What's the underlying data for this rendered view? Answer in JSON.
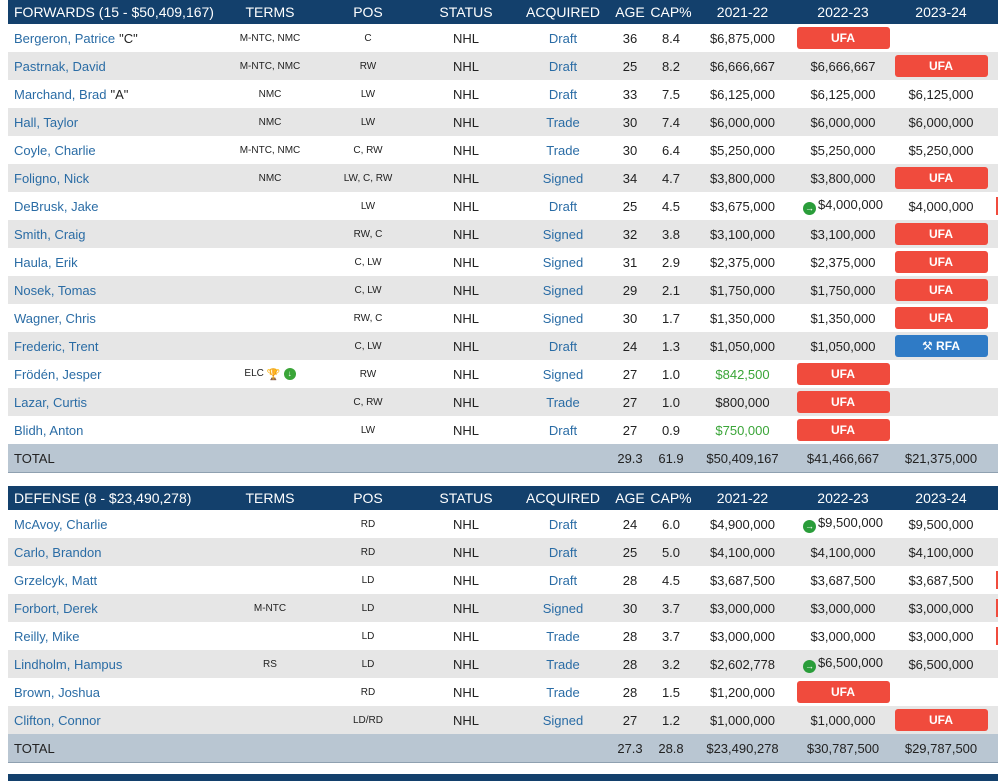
{
  "forwards": {
    "title": "FORWARDS (15 - $50,409,167)",
    "headers": [
      "TERMS",
      "POS",
      "STATUS",
      "ACQUIRED",
      "AGE",
      "CAP%",
      "2021-22",
      "2022-23",
      "2023-24"
    ],
    "rows": [
      {
        "name": "Bergeron, Patrice",
        "tag": "\"C\"",
        "terms": "M-NTC, NMC",
        "pos": "C",
        "status": "NHL",
        "acquired": "Draft",
        "age": "36",
        "cap": "8.4",
        "y1": "$6,875,000",
        "y2": "UFA",
        "y3": ""
      },
      {
        "name": "Pastrnak, David",
        "tag": "",
        "terms": "M-NTC, NMC",
        "pos": "RW",
        "status": "NHL",
        "acquired": "Draft",
        "age": "25",
        "cap": "8.2",
        "y1": "$6,666,667",
        "y2": "$6,666,667",
        "y3": "UFA"
      },
      {
        "name": "Marchand, Brad",
        "tag": "\"A\"",
        "terms": "NMC",
        "pos": "LW",
        "status": "NHL",
        "acquired": "Draft",
        "age": "33",
        "cap": "7.5",
        "y1": "$6,125,000",
        "y2": "$6,125,000",
        "y3": "$6,125,000"
      },
      {
        "name": "Hall, Taylor",
        "tag": "",
        "terms": "NMC",
        "pos": "LW",
        "status": "NHL",
        "acquired": "Trade",
        "age": "30",
        "cap": "7.4",
        "y1": "$6,000,000",
        "y2": "$6,000,000",
        "y3": "$6,000,000"
      },
      {
        "name": "Coyle, Charlie",
        "tag": "",
        "terms": "M-NTC, NMC",
        "pos": "C, RW",
        "status": "NHL",
        "acquired": "Trade",
        "age": "30",
        "cap": "6.4",
        "y1": "$5,250,000",
        "y2": "$5,250,000",
        "y3": "$5,250,000"
      },
      {
        "name": "Foligno, Nick",
        "tag": "",
        "terms": "NMC",
        "pos": "LW, C, RW",
        "status": "NHL",
        "acquired": "Signed",
        "age": "34",
        "cap": "4.7",
        "y1": "$3,800,000",
        "y2": "$3,800,000",
        "y3": "UFA"
      },
      {
        "name": "DeBrusk, Jake",
        "tag": "",
        "terms": "",
        "pos": "LW",
        "status": "NHL",
        "acquired": "Draft",
        "age": "25",
        "cap": "4.5",
        "y1": "$3,675,000",
        "y2": "$4,000,000",
        "y3": "$4,000,000"
      },
      {
        "name": "Smith, Craig",
        "tag": "",
        "terms": "",
        "pos": "RW, C",
        "status": "NHL",
        "acquired": "Signed",
        "age": "32",
        "cap": "3.8",
        "y1": "$3,100,000",
        "y2": "$3,100,000",
        "y3": "UFA"
      },
      {
        "name": "Haula, Erik",
        "tag": "",
        "terms": "",
        "pos": "C, LW",
        "status": "NHL",
        "acquired": "Signed",
        "age": "31",
        "cap": "2.9",
        "y1": "$2,375,000",
        "y2": "$2,375,000",
        "y3": "UFA"
      },
      {
        "name": "Nosek, Tomas",
        "tag": "",
        "terms": "",
        "pos": "C, LW",
        "status": "NHL",
        "acquired": "Signed",
        "age": "29",
        "cap": "2.1",
        "y1": "$1,750,000",
        "y2": "$1,750,000",
        "y3": "UFA"
      },
      {
        "name": "Wagner, Chris",
        "tag": "",
        "terms": "",
        "pos": "RW, C",
        "status": "NHL",
        "acquired": "Signed",
        "age": "30",
        "cap": "1.7",
        "y1": "$1,350,000",
        "y2": "$1,350,000",
        "y3": "UFA"
      },
      {
        "name": "Frederic, Trent",
        "tag": "",
        "terms": "",
        "pos": "C, LW",
        "status": "NHL",
        "acquired": "Draft",
        "age": "24",
        "cap": "1.3",
        "y1": "$1,050,000",
        "y2": "$1,050,000",
        "y3": "RFA"
      },
      {
        "name": "Frödén, Jesper",
        "tag": "",
        "terms": "ELC",
        "pos": "RW",
        "status": "NHL",
        "acquired": "Signed",
        "age": "27",
        "cap": "1.0",
        "y1": "$842,500",
        "y2": "UFA",
        "y3": ""
      },
      {
        "name": "Lazar, Curtis",
        "tag": "",
        "terms": "",
        "pos": "C, RW",
        "status": "NHL",
        "acquired": "Trade",
        "age": "27",
        "cap": "1.0",
        "y1": "$800,000",
        "y2": "UFA",
        "y3": ""
      },
      {
        "name": "Blidh, Anton",
        "tag": "",
        "terms": "",
        "pos": "LW",
        "status": "NHL",
        "acquired": "Draft",
        "age": "27",
        "cap": "0.9",
        "y1": "$750,000",
        "y2": "UFA",
        "y3": ""
      }
    ],
    "total": {
      "label": "TOTAL",
      "age": "29.3",
      "cap": "61.9",
      "y1": "$50,409,167",
      "y2": "$41,466,667",
      "y3": "$21,375,000"
    }
  },
  "defense": {
    "title": "DEFENSE (8 - $23,490,278)",
    "headers": [
      "TERMS",
      "POS",
      "STATUS",
      "ACQUIRED",
      "AGE",
      "CAP%",
      "2021-22",
      "2022-23",
      "2023-24"
    ],
    "rows": [
      {
        "name": "McAvoy, Charlie",
        "tag": "",
        "terms": "",
        "pos": "RD",
        "status": "NHL",
        "acquired": "Draft",
        "age": "24",
        "cap": "6.0",
        "y1": "$4,900,000",
        "y2": "$9,500,000",
        "y3": "$9,500,000"
      },
      {
        "name": "Carlo, Brandon",
        "tag": "",
        "terms": "",
        "pos": "RD",
        "status": "NHL",
        "acquired": "Draft",
        "age": "25",
        "cap": "5.0",
        "y1": "$4,100,000",
        "y2": "$4,100,000",
        "y3": "$4,100,000"
      },
      {
        "name": "Grzelcyk, Matt",
        "tag": "",
        "terms": "",
        "pos": "LD",
        "status": "NHL",
        "acquired": "Draft",
        "age": "28",
        "cap": "4.5",
        "y1": "$3,687,500",
        "y2": "$3,687,500",
        "y3": "$3,687,500"
      },
      {
        "name": "Forbort, Derek",
        "tag": "",
        "terms": "M-NTC",
        "pos": "LD",
        "status": "NHL",
        "acquired": "Signed",
        "age": "30",
        "cap": "3.7",
        "y1": "$3,000,000",
        "y2": "$3,000,000",
        "y3": "$3,000,000"
      },
      {
        "name": "Reilly, Mike",
        "tag": "",
        "terms": "",
        "pos": "LD",
        "status": "NHL",
        "acquired": "Trade",
        "age": "28",
        "cap": "3.7",
        "y1": "$3,000,000",
        "y2": "$3,000,000",
        "y3": "$3,000,000"
      },
      {
        "name": "Lindholm, Hampus",
        "tag": "",
        "terms": "RS",
        "pos": "LD",
        "status": "NHL",
        "acquired": "Trade",
        "age": "28",
        "cap": "3.2",
        "y1": "$2,602,778",
        "y2": "$6,500,000",
        "y3": "$6,500,000"
      },
      {
        "name": "Brown, Joshua",
        "tag": "",
        "terms": "",
        "pos": "RD",
        "status": "NHL",
        "acquired": "Trade",
        "age": "28",
        "cap": "1.5",
        "y1": "$1,200,000",
        "y2": "UFA",
        "y3": ""
      },
      {
        "name": "Clifton, Connor",
        "tag": "",
        "terms": "",
        "pos": "LD/RD",
        "status": "NHL",
        "acquired": "Signed",
        "age": "27",
        "cap": "1.2",
        "y1": "$1,000,000",
        "y2": "$1,000,000",
        "y3": "UFA"
      }
    ],
    "total": {
      "label": "TOTAL",
      "age": "27.3",
      "cap": "28.8",
      "y1": "$23,490,278",
      "y2": "$30,787,500",
      "y3": "$29,787,500"
    }
  },
  "special": {
    "green_y1": [
      "Frödén, Jesper",
      "Blidh, Anton"
    ],
    "arrow_y2": [
      "DeBrusk, Jake",
      "McAvoy, Charlie",
      "Lindholm, Hampus"
    ],
    "elc_icons": [
      "Frödén, Jesper"
    ],
    "edge_marks": [
      "DeBrusk, Jake",
      "Grzelcyk, Matt",
      "Forbort, Derek",
      "Reilly, Mike"
    ]
  },
  "colors": {
    "header": "#13406c",
    "ufa": "#f04b3d",
    "rfa": "#2f7bc6",
    "link": "#2a6ca5",
    "green": "#3aa538",
    "total": "#b9c6d2"
  }
}
